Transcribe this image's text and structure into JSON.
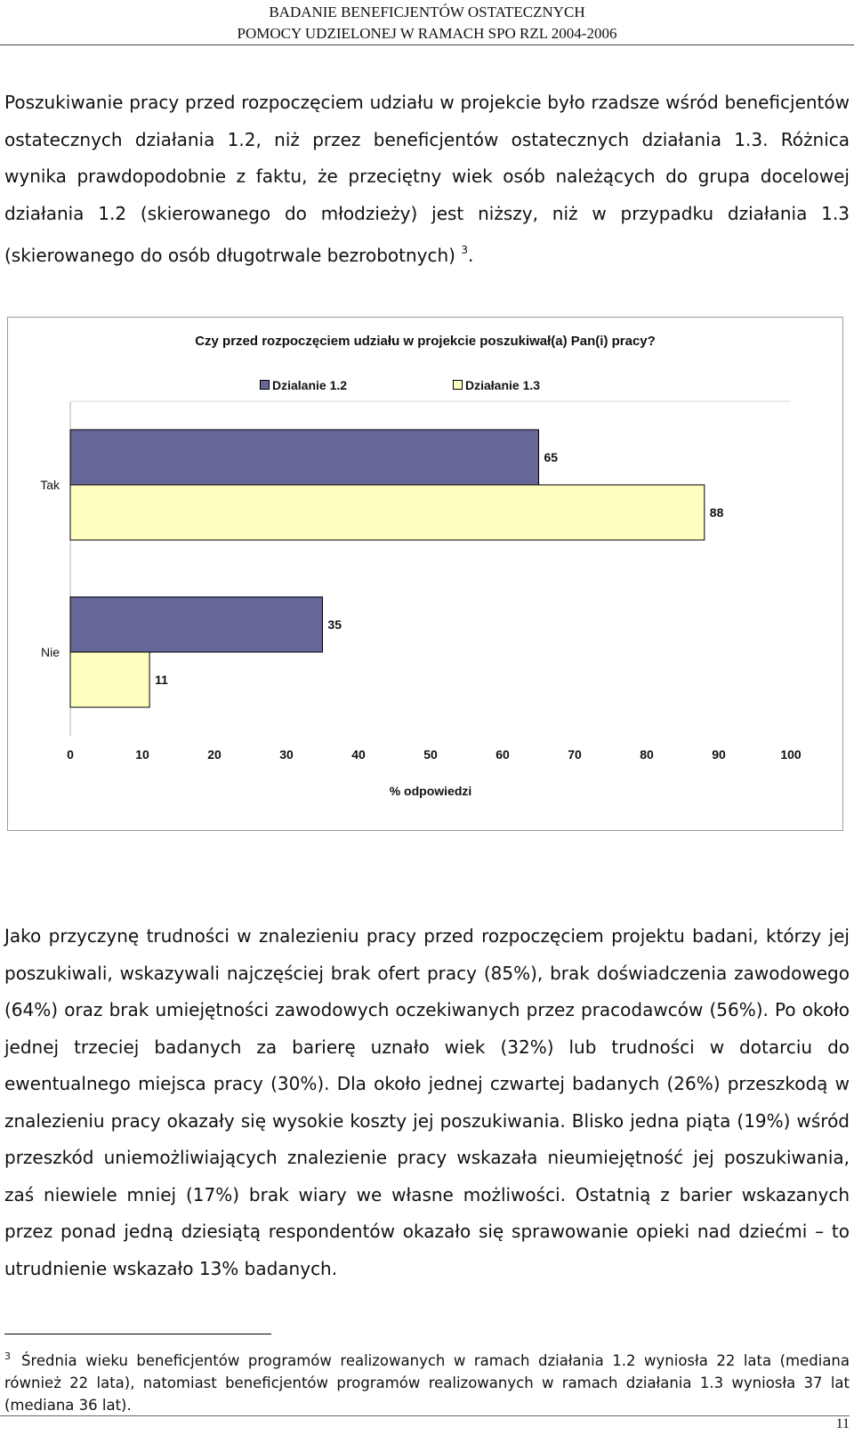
{
  "header": {
    "line1": "BADANIE BENEFICJENTÓW OSTATECZNYCH",
    "line2": "POMOCY UDZIELONEJ W RAMACH SPO RZL 2004-2006"
  },
  "para1": {
    "text": "Poszukiwanie pracy przed rozpoczęciem udziału w projekcie było rzadsze wśród beneficjentów ostatecznych działania 1.2, niż przez beneficjentów ostatecznych działania 1.3. Różnica wynika prawdopodobnie z faktu, że przeciętny wiek osób należących do grupa docelowej działania 1.2 (skierowanego do młodzieży) jest niższy, niż w przypadku działania 1.3 (skierowanego do osób długotrwale bezrobotnych)",
    "footnote_ref": "3",
    "end": "."
  },
  "chart_data": {
    "type": "bar",
    "orientation": "horizontal",
    "title": "Czy przed rozpoczęciem udziału w projekcie poszukiwał(a) Pan(i) pracy?",
    "categories": [
      "Tak",
      "Nie"
    ],
    "series": [
      {
        "name": "Dzialanie 1.2",
        "color": "#666699",
        "values": [
          65,
          35
        ]
      },
      {
        "name": "Działanie 1.3",
        "color": "#ffffc0",
        "values": [
          88,
          11
        ]
      }
    ],
    "xlabel": "% odpowiedzi",
    "ylabel": "",
    "xlim": [
      0,
      100
    ],
    "ticks": [
      0,
      10,
      20,
      30,
      40,
      50,
      60,
      70,
      80,
      90,
      100
    ],
    "data_labels": true,
    "legend_position": "top",
    "grid": false
  },
  "para2": {
    "text": "Jako przyczynę trudności w znalezieniu pracy przed rozpoczęciem projektu badani, którzy jej poszukiwali, wskazywali najczęściej brak ofert pracy (85%), brak doświadczenia zawodowego (64%) oraz brak umiejętności zawodowych oczekiwanych przez pracodawców (56%). Po około jednej trzeciej badanych za barierę uznało wiek (32%) lub trudności w dotarciu do ewentualnego miejsca pracy (30%). Dla około jednej czwartej badanych (26%) przeszkodą w znalezieniu pracy okazały się wysokie koszty jej poszukiwania. Blisko jedna piąta (19%) wśród przeszkód uniemożliwiających znalezienie pracy wskazała nieumiejętność jej poszukiwania, zaś niewiele mniej (17%) brak wiary we własne możliwości. Ostatnią z barier wskazanych przez ponad jedną dziesiątą respondentów okazało się sprawowanie opieki nad dziećmi – to utrudnienie wskazało 13% badanych."
  },
  "footnote": {
    "number": "3",
    "text": "Średnia wieku beneficjentów programów realizowanych w ramach działania 1.2 wyniosła 22 lata (mediana również 22 lata), natomiast beneficjentów programów realizowanych w ramach działania 1.3 wyniosła 37 lat (mediana 36 lat)."
  },
  "page_number": "11"
}
